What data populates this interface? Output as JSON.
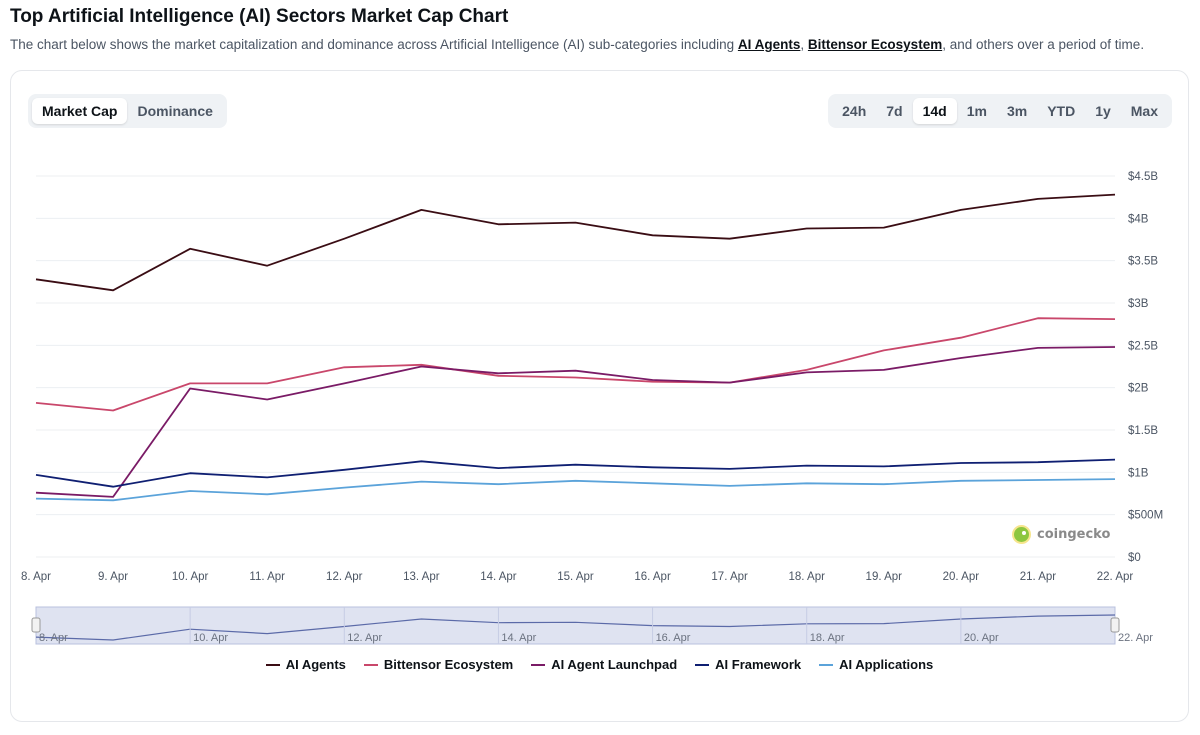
{
  "header": {
    "title": "Top Artificial Intelligence (AI) Sectors Market Cap Chart",
    "subtitle_prefix": "The chart below shows the market capitalization and dominance across Artificial Intelligence (AI) sub-categories including ",
    "link1": "AI Agents",
    "sep": ", ",
    "link2": "Bittensor Ecosystem",
    "subtitle_suffix": ", and others over a period of time."
  },
  "view_tabs": [
    {
      "label": "Market Cap",
      "active": true
    },
    {
      "label": "Dominance",
      "active": false
    }
  ],
  "range_tabs": [
    {
      "label": "24h",
      "active": false
    },
    {
      "label": "7d",
      "active": false
    },
    {
      "label": "14d",
      "active": true
    },
    {
      "label": "1m",
      "active": false
    },
    {
      "label": "3m",
      "active": false
    },
    {
      "label": "YTD",
      "active": false
    },
    {
      "label": "1y",
      "active": false
    },
    {
      "label": "Max",
      "active": false
    }
  ],
  "watermark": "coingecko",
  "chart_data": {
    "type": "line",
    "title": "Top Artificial Intelligence (AI) Sectors Market Cap Chart",
    "categories": [
      "8. Apr",
      "9. Apr",
      "10. Apr",
      "11. Apr",
      "12. Apr",
      "13. Apr",
      "14. Apr",
      "15. Apr",
      "16. Apr",
      "17. Apr",
      "18. Apr",
      "19. Apr",
      "20. Apr",
      "21. Apr",
      "22. Apr"
    ],
    "y_ticks": [
      {
        "value": 0,
        "label": "$0"
      },
      {
        "value": 0.5,
        "label": "$500M"
      },
      {
        "value": 1,
        "label": "$1B"
      },
      {
        "value": 1.5,
        "label": "$1.5B"
      },
      {
        "value": 2,
        "label": "$2B"
      },
      {
        "value": 2.5,
        "label": "$2.5B"
      },
      {
        "value": 3,
        "label": "$3B"
      },
      {
        "value": 3.5,
        "label": "$3.5B"
      },
      {
        "value": 4,
        "label": "$4B"
      },
      {
        "value": 4.5,
        "label": "$4.5B"
      }
    ],
    "ylim": [
      0,
      4.5
    ],
    "y_unit": "USD billions",
    "series": [
      {
        "name": "AI Agents",
        "color": "#3a0d14",
        "values": [
          3.28,
          3.15,
          3.64,
          3.44,
          3.76,
          4.1,
          3.93,
          3.95,
          3.8,
          3.76,
          3.88,
          3.89,
          4.1,
          4.23,
          4.28
        ]
      },
      {
        "name": "Bittensor Ecosystem",
        "color": "#c9476b",
        "values": [
          1.82,
          1.73,
          2.05,
          2.05,
          2.24,
          2.27,
          2.14,
          2.12,
          2.07,
          2.06,
          2.21,
          2.44,
          2.59,
          2.82,
          2.81
        ]
      },
      {
        "name": "AI Agent Launchpad",
        "color": "#7a1b66",
        "values": [
          0.76,
          0.71,
          1.99,
          1.86,
          2.05,
          2.25,
          2.17,
          2.2,
          2.09,
          2.06,
          2.18,
          2.21,
          2.35,
          2.47,
          2.48
        ]
      },
      {
        "name": "AI Framework",
        "color": "#0f1f72",
        "values": [
          0.97,
          0.83,
          0.99,
          0.94,
          1.03,
          1.13,
          1.05,
          1.09,
          1.06,
          1.04,
          1.08,
          1.07,
          1.11,
          1.12,
          1.15
        ]
      },
      {
        "name": "AI Applications",
        "color": "#5ba3da",
        "values": [
          0.69,
          0.67,
          0.78,
          0.74,
          0.82,
          0.89,
          0.86,
          0.9,
          0.87,
          0.84,
          0.87,
          0.86,
          0.9,
          0.91,
          0.92
        ]
      }
    ],
    "navigator_labels": [
      "8. Apr",
      "10. Apr",
      "12. Apr",
      "14. Apr",
      "16. Apr",
      "18. Apr",
      "20. Apr",
      "22. Apr"
    ],
    "legend_position": "bottom"
  }
}
